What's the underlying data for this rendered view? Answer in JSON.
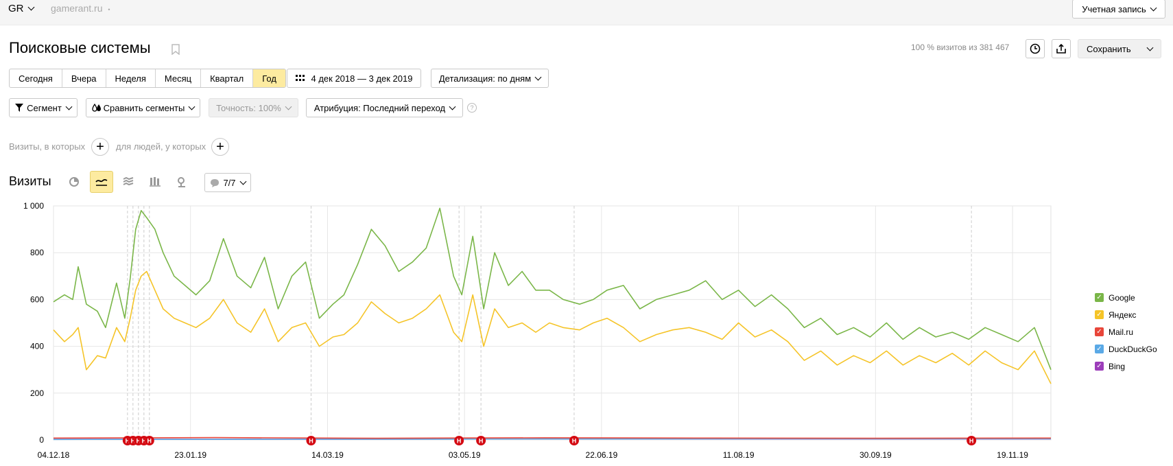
{
  "header": {
    "account_switch": "GR",
    "site": "gamerant.ru",
    "site_dot": "•",
    "account_button": "Учетная запись"
  },
  "page": {
    "title": "Поисковые системы",
    "visits_summary": "100 % визитов из 381 467",
    "save_label": "Сохранить"
  },
  "period": {
    "buttons": [
      "Сегодня",
      "Вчера",
      "Неделя",
      "Месяц",
      "Квартал",
      "Год"
    ],
    "active": 5,
    "date_range": "4 дек 2018 — 3 дек 2019",
    "detail": "Детализация: по дням"
  },
  "filters": {
    "segment": "Сегмент",
    "compare": "Сравнить сегменты",
    "accuracy": "Точность: 100%",
    "attribution": "Атрибуция: Последний переход",
    "help": "?"
  },
  "conditions": {
    "visits_label": "Визиты, в которых",
    "people_label": "для людей, у которых",
    "plus": "+"
  },
  "chart_header": {
    "title": "Визиты",
    "annotations_count": "7/7"
  },
  "icons": {
    "bookmark": "bookmark-icon",
    "history": "clock-icon",
    "export": "export-icon",
    "calendar": "calendar-icon",
    "segment": "filter-icon",
    "compare": "drops-icon",
    "pie": "pie-chart-icon",
    "line": "line-chart-icon",
    "area": "area-chart-icon",
    "bars": "bar-chart-icon",
    "map": "map-pin-icon",
    "comment": "comment-icon"
  },
  "colors": {
    "google": "#7ab648",
    "yandex": "#f5c428",
    "mailru": "#e8463a",
    "duckduckgo": "#5aa9e6",
    "bing": "#9c3dba",
    "holiday": "#cc0000",
    "active_tab": "#fdeba0"
  },
  "chart_data": {
    "type": "line",
    "ylim": [
      0,
      1000
    ],
    "y_ticks": [
      "0",
      "200",
      "400",
      "600",
      "800",
      "1 000"
    ],
    "x_range": [
      "2018-12-04",
      "2019-12-03"
    ],
    "x_ticks": [
      {
        "label": "04.12.18",
        "date": "2018-12-04",
        "holiday": false
      },
      {
        "label": "23.01.19",
        "date": "2019-01-23",
        "holiday": false
      },
      {
        "label": "14.03.19",
        "date": "2019-03-14",
        "holiday": false
      },
      {
        "label": "03.05.19",
        "date": "2019-05-03",
        "holiday": false
      },
      {
        "label": "22.06.19",
        "date": "2019-06-22",
        "holiday": true
      },
      {
        "label": "11.08.19",
        "date": "2019-08-11",
        "holiday": true
      },
      {
        "label": "30.09.19",
        "date": "2019-09-30",
        "holiday": false
      },
      {
        "label": "19.11.19",
        "date": "2019-11-19",
        "holiday": false
      }
    ],
    "holiday_marker_label": "Н",
    "holiday_marker_dates": [
      "2018-12-31",
      "2019-01-02",
      "2019-01-04",
      "2019-01-06",
      "2019-01-08",
      "2019-03-08",
      "2019-05-01",
      "2019-05-09",
      "2019-06-12",
      "2019-11-04"
    ],
    "series": [
      {
        "name": "Google",
        "color": "#7ab648",
        "points": [
          [
            "2018-12-04",
            590
          ],
          [
            "2018-12-08",
            620
          ],
          [
            "2018-12-11",
            600
          ],
          [
            "2018-12-13",
            740
          ],
          [
            "2018-12-16",
            580
          ],
          [
            "2018-12-20",
            550
          ],
          [
            "2018-12-23",
            480
          ],
          [
            "2018-12-27",
            670
          ],
          [
            "2018-12-30",
            520
          ],
          [
            "2019-01-01",
            690
          ],
          [
            "2019-01-03",
            900
          ],
          [
            "2019-01-05",
            980
          ],
          [
            "2019-01-07",
            950
          ],
          [
            "2019-01-10",
            900
          ],
          [
            "2019-01-13",
            800
          ],
          [
            "2019-01-17",
            700
          ],
          [
            "2019-01-21",
            660
          ],
          [
            "2019-01-25",
            620
          ],
          [
            "2019-01-30",
            680
          ],
          [
            "2019-02-04",
            860
          ],
          [
            "2019-02-09",
            700
          ],
          [
            "2019-02-14",
            650
          ],
          [
            "2019-02-19",
            780
          ],
          [
            "2019-02-24",
            560
          ],
          [
            "2019-03-01",
            700
          ],
          [
            "2019-03-06",
            760
          ],
          [
            "2019-03-11",
            520
          ],
          [
            "2019-03-16",
            580
          ],
          [
            "2019-03-20",
            620
          ],
          [
            "2019-03-25",
            750
          ],
          [
            "2019-03-30",
            900
          ],
          [
            "2019-04-04",
            830
          ],
          [
            "2019-04-09",
            720
          ],
          [
            "2019-04-14",
            760
          ],
          [
            "2019-04-19",
            820
          ],
          [
            "2019-04-24",
            990
          ],
          [
            "2019-04-29",
            700
          ],
          [
            "2019-05-02",
            620
          ],
          [
            "2019-05-06",
            870
          ],
          [
            "2019-05-10",
            560
          ],
          [
            "2019-05-14",
            800
          ],
          [
            "2019-05-19",
            660
          ],
          [
            "2019-05-24",
            720
          ],
          [
            "2019-05-29",
            640
          ],
          [
            "2019-06-03",
            640
          ],
          [
            "2019-06-08",
            600
          ],
          [
            "2019-06-14",
            580
          ],
          [
            "2019-06-19",
            600
          ],
          [
            "2019-06-24",
            640
          ],
          [
            "2019-06-30",
            660
          ],
          [
            "2019-07-06",
            560
          ],
          [
            "2019-07-12",
            600
          ],
          [
            "2019-07-18",
            620
          ],
          [
            "2019-07-24",
            640
          ],
          [
            "2019-07-30",
            680
          ],
          [
            "2019-08-05",
            600
          ],
          [
            "2019-08-11",
            640
          ],
          [
            "2019-08-17",
            570
          ],
          [
            "2019-08-23",
            620
          ],
          [
            "2019-08-29",
            560
          ],
          [
            "2019-09-04",
            480
          ],
          [
            "2019-09-10",
            520
          ],
          [
            "2019-09-16",
            450
          ],
          [
            "2019-09-22",
            480
          ],
          [
            "2019-09-28",
            440
          ],
          [
            "2019-10-04",
            500
          ],
          [
            "2019-10-10",
            430
          ],
          [
            "2019-10-16",
            480
          ],
          [
            "2019-10-22",
            440
          ],
          [
            "2019-10-28",
            460
          ],
          [
            "2019-11-03",
            430
          ],
          [
            "2019-11-09",
            480
          ],
          [
            "2019-11-15",
            450
          ],
          [
            "2019-11-21",
            420
          ],
          [
            "2019-11-27",
            480
          ],
          [
            "2019-12-03",
            300
          ]
        ]
      },
      {
        "name": "Яндекс",
        "color": "#f5c428",
        "points": [
          [
            "2018-12-04",
            470
          ],
          [
            "2018-12-08",
            420
          ],
          [
            "2018-12-11",
            450
          ],
          [
            "2018-12-13",
            480
          ],
          [
            "2018-12-16",
            300
          ],
          [
            "2018-12-20",
            360
          ],
          [
            "2018-12-23",
            350
          ],
          [
            "2018-12-27",
            480
          ],
          [
            "2018-12-30",
            420
          ],
          [
            "2019-01-01",
            520
          ],
          [
            "2019-01-03",
            640
          ],
          [
            "2019-01-05",
            700
          ],
          [
            "2019-01-07",
            720
          ],
          [
            "2019-01-10",
            640
          ],
          [
            "2019-01-13",
            560
          ],
          [
            "2019-01-17",
            520
          ],
          [
            "2019-01-21",
            500
          ],
          [
            "2019-01-25",
            480
          ],
          [
            "2019-01-30",
            520
          ],
          [
            "2019-02-04",
            600
          ],
          [
            "2019-02-09",
            500
          ],
          [
            "2019-02-14",
            460
          ],
          [
            "2019-02-19",
            560
          ],
          [
            "2019-02-24",
            420
          ],
          [
            "2019-03-01",
            480
          ],
          [
            "2019-03-06",
            500
          ],
          [
            "2019-03-11",
            400
          ],
          [
            "2019-03-16",
            440
          ],
          [
            "2019-03-20",
            450
          ],
          [
            "2019-03-25",
            500
          ],
          [
            "2019-03-30",
            590
          ],
          [
            "2019-04-04",
            540
          ],
          [
            "2019-04-09",
            500
          ],
          [
            "2019-04-14",
            520
          ],
          [
            "2019-04-19",
            560
          ],
          [
            "2019-04-24",
            620
          ],
          [
            "2019-04-29",
            460
          ],
          [
            "2019-05-02",
            420
          ],
          [
            "2019-05-06",
            620
          ],
          [
            "2019-05-10",
            400
          ],
          [
            "2019-05-14",
            560
          ],
          [
            "2019-05-19",
            480
          ],
          [
            "2019-05-24",
            500
          ],
          [
            "2019-05-29",
            460
          ],
          [
            "2019-06-03",
            500
          ],
          [
            "2019-06-08",
            480
          ],
          [
            "2019-06-14",
            470
          ],
          [
            "2019-06-19",
            500
          ],
          [
            "2019-06-24",
            520
          ],
          [
            "2019-06-30",
            480
          ],
          [
            "2019-07-06",
            420
          ],
          [
            "2019-07-12",
            450
          ],
          [
            "2019-07-18",
            470
          ],
          [
            "2019-07-24",
            480
          ],
          [
            "2019-07-30",
            460
          ],
          [
            "2019-08-05",
            430
          ],
          [
            "2019-08-11",
            500
          ],
          [
            "2019-08-17",
            440
          ],
          [
            "2019-08-23",
            470
          ],
          [
            "2019-08-29",
            420
          ],
          [
            "2019-09-04",
            340
          ],
          [
            "2019-09-10",
            380
          ],
          [
            "2019-09-16",
            320
          ],
          [
            "2019-09-22",
            360
          ],
          [
            "2019-09-28",
            330
          ],
          [
            "2019-10-04",
            380
          ],
          [
            "2019-10-10",
            320
          ],
          [
            "2019-10-16",
            360
          ],
          [
            "2019-10-22",
            330
          ],
          [
            "2019-10-28",
            370
          ],
          [
            "2019-11-03",
            320
          ],
          [
            "2019-11-09",
            380
          ],
          [
            "2019-11-15",
            330
          ],
          [
            "2019-11-21",
            300
          ],
          [
            "2019-11-27",
            380
          ],
          [
            "2019-12-03",
            240
          ]
        ]
      },
      {
        "name": "Mail.ru",
        "color": "#e8463a",
        "points": [
          [
            "2018-12-04",
            8
          ],
          [
            "2019-02-01",
            10
          ],
          [
            "2019-04-01",
            7
          ],
          [
            "2019-06-01",
            9
          ],
          [
            "2019-08-01",
            8
          ],
          [
            "2019-10-01",
            7
          ],
          [
            "2019-12-03",
            8
          ]
        ]
      },
      {
        "name": "DuckDuckGo",
        "color": "#5aa9e6",
        "points": [
          [
            "2018-12-04",
            2
          ],
          [
            "2019-03-01",
            3
          ],
          [
            "2019-06-01",
            4
          ],
          [
            "2019-09-01",
            5
          ],
          [
            "2019-12-03",
            5
          ]
        ]
      },
      {
        "name": "Bing",
        "color": "#9c3dba",
        "points": [
          [
            "2018-12-04",
            3
          ],
          [
            "2019-03-01",
            3
          ],
          [
            "2019-06-01",
            4
          ],
          [
            "2019-09-01",
            4
          ],
          [
            "2019-12-03",
            4
          ]
        ]
      }
    ]
  }
}
